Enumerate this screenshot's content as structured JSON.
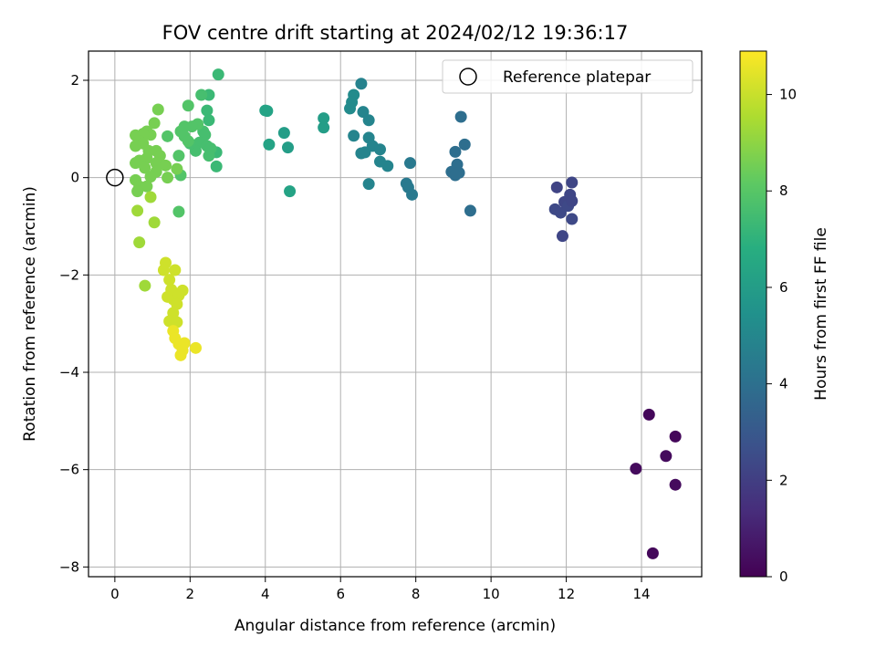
{
  "chart_data": {
    "type": "scatter",
    "title": "FOV centre drift starting at 2024/02/12 19:36:17",
    "xlabel": "Angular distance from reference (arcmin)",
    "ylabel": "Rotation from reference (arcmin)",
    "xlim": [
      -0.7,
      15.6
    ],
    "ylim": [
      -8.2,
      2.6
    ],
    "xticks": [
      0,
      2,
      4,
      6,
      8,
      10,
      12,
      14
    ],
    "yticks": [
      -8,
      -6,
      -4,
      -2,
      0,
      2
    ],
    "grid": true,
    "legend": {
      "placement": "top-right",
      "entries": [
        "Reference platepar"
      ]
    },
    "colorbar": {
      "label": "Hours from first FF file",
      "colormap": "viridis",
      "range": [
        0,
        10.9
      ],
      "ticks": [
        0,
        2,
        4,
        6,
        8,
        10
      ]
    },
    "reference_point": {
      "x": 0,
      "y": 0,
      "label": "Reference platepar"
    },
    "series": [
      {
        "points": [
          [
            14.2,
            -4.87,
            0.2
          ],
          [
            14.9,
            -5.32,
            0.2
          ],
          [
            14.65,
            -5.72,
            0.3
          ],
          [
            13.85,
            -5.98,
            0.3
          ],
          [
            14.9,
            -6.31,
            0.3
          ],
          [
            14.3,
            -7.72,
            0.2
          ],
          [
            11.75,
            -0.2,
            2.2
          ],
          [
            12.15,
            -0.1,
            2.3
          ],
          [
            12.1,
            -0.35,
            2.3
          ],
          [
            11.95,
            -0.5,
            2.3
          ],
          [
            11.7,
            -0.65,
            2.4
          ],
          [
            11.85,
            -0.72,
            2.4
          ],
          [
            12.05,
            -0.58,
            2.4
          ],
          [
            12.15,
            -0.48,
            2.3
          ],
          [
            12.15,
            -0.85,
            2.4
          ],
          [
            11.9,
            -1.2,
            2.3
          ],
          [
            9.2,
            1.25,
            3.9
          ],
          [
            9.3,
            0.68,
            3.9
          ],
          [
            9.05,
            0.53,
            3.9
          ],
          [
            9.1,
            0.27,
            3.9
          ],
          [
            8.95,
            0.12,
            3.9
          ],
          [
            9.15,
            0.1,
            3.9
          ],
          [
            9.05,
            0.05,
            3.9
          ],
          [
            9.45,
            -0.68,
            3.9
          ],
          [
            7.85,
            0.3,
            4.4
          ],
          [
            7.75,
            -0.12,
            4.4
          ],
          [
            7.8,
            -0.2,
            4.4
          ],
          [
            7.9,
            -0.35,
            4.4
          ],
          [
            6.55,
            1.93,
            4.8
          ],
          [
            6.6,
            1.35,
            4.9
          ],
          [
            6.75,
            1.18,
            4.9
          ],
          [
            6.35,
            0.86,
            4.9
          ],
          [
            6.75,
            0.82,
            4.9
          ],
          [
            6.85,
            0.65,
            4.9
          ],
          [
            7.05,
            0.58,
            4.9
          ],
          [
            6.65,
            0.52,
            4.9
          ],
          [
            6.55,
            0.5,
            4.9
          ],
          [
            7.05,
            0.33,
            4.9
          ],
          [
            7.25,
            0.24,
            4.9
          ],
          [
            6.75,
            -0.13,
            4.9
          ],
          [
            6.35,
            1.7,
            5.2
          ],
          [
            6.3,
            1.55,
            5.2
          ],
          [
            6.25,
            1.42,
            5.2
          ],
          [
            5.55,
            1.22,
            6.0
          ],
          [
            5.55,
            1.03,
            6.0
          ],
          [
            4.5,
            0.92,
            6.0
          ],
          [
            4.6,
            0.62,
            6.0
          ],
          [
            4.05,
            1.37,
            6.3
          ],
          [
            4.1,
            0.68,
            6.3
          ],
          [
            4.0,
            1.38,
            6.3
          ],
          [
            4.65,
            -0.28,
            6.3
          ],
          [
            2.75,
            2.12,
            7.3
          ],
          [
            2.5,
            1.7,
            7.3
          ],
          [
            2.45,
            1.38,
            7.3
          ],
          [
            2.5,
            1.18,
            7.3
          ],
          [
            2.7,
            0.52,
            7.3
          ],
          [
            2.7,
            0.23,
            7.3
          ],
          [
            2.3,
            1.7,
            7.6
          ],
          [
            2.35,
            0.95,
            7.6
          ],
          [
            2.4,
            0.88,
            7.6
          ],
          [
            2.25,
            0.72,
            7.6
          ],
          [
            2.45,
            0.65,
            7.6
          ],
          [
            2.55,
            0.6,
            7.6
          ],
          [
            2.5,
            0.45,
            7.6
          ],
          [
            2.15,
            0.55,
            7.6
          ],
          [
            2.0,
            0.7,
            7.6
          ],
          [
            1.95,
            1.48,
            7.9
          ],
          [
            2.2,
            1.1,
            7.9
          ],
          [
            2.05,
            1.05,
            7.9
          ],
          [
            1.85,
            1.05,
            7.9
          ],
          [
            1.75,
            0.95,
            7.9
          ],
          [
            1.85,
            0.85,
            7.9
          ],
          [
            1.95,
            0.75,
            7.9
          ],
          [
            1.7,
            0.45,
            7.9
          ],
          [
            1.75,
            0.05,
            7.9
          ],
          [
            1.7,
            -0.7,
            7.9
          ],
          [
            1.4,
            0.85,
            7.9
          ],
          [
            1.15,
            1.4,
            8.6
          ],
          [
            1.05,
            1.12,
            8.6
          ],
          [
            0.85,
            0.95,
            8.6
          ],
          [
            0.95,
            0.88,
            8.6
          ],
          [
            0.75,
            0.9,
            8.6
          ],
          [
            0.55,
            0.87,
            8.6
          ],
          [
            0.65,
            0.75,
            8.6
          ],
          [
            0.75,
            0.7,
            8.6
          ],
          [
            0.55,
            0.65,
            8.6
          ],
          [
            0.9,
            0.55,
            8.6
          ],
          [
            1.1,
            0.55,
            8.6
          ],
          [
            1.2,
            0.45,
            8.6
          ],
          [
            0.85,
            0.4,
            8.6
          ],
          [
            0.65,
            0.35,
            8.6
          ],
          [
            0.55,
            0.3,
            8.6
          ],
          [
            0.8,
            0.2,
            8.6
          ],
          [
            1.1,
            0.3,
            8.6
          ],
          [
            1.35,
            0.25,
            8.6
          ],
          [
            1.4,
            0.0,
            8.6
          ],
          [
            1.65,
            0.18,
            8.6
          ],
          [
            1.1,
            0.12,
            8.6
          ],
          [
            0.95,
            0.02,
            8.6
          ],
          [
            0.55,
            -0.05,
            8.6
          ],
          [
            0.65,
            -0.18,
            8.6
          ],
          [
            0.85,
            -0.18,
            8.6
          ],
          [
            0.6,
            -0.28,
            8.6
          ],
          [
            0.95,
            -0.4,
            9.3
          ],
          [
            1.05,
            -0.92,
            9.3
          ],
          [
            0.6,
            -0.68,
            9.3
          ],
          [
            0.65,
            -1.33,
            9.3
          ],
          [
            0.8,
            -2.22,
            9.3
          ],
          [
            1.35,
            -1.75,
            10.1
          ],
          [
            1.3,
            -1.9,
            10.1
          ],
          [
            1.6,
            -1.9,
            10.1
          ],
          [
            1.45,
            -2.1,
            10.1
          ],
          [
            1.5,
            -2.3,
            10.1
          ],
          [
            1.4,
            -2.45,
            10.1
          ],
          [
            1.55,
            -2.5,
            10.1
          ],
          [
            1.8,
            -2.32,
            10.1
          ],
          [
            1.7,
            -2.42,
            10.1
          ],
          [
            1.65,
            -2.6,
            10.1
          ],
          [
            1.55,
            -2.78,
            10.1
          ],
          [
            1.45,
            -2.95,
            10.1
          ],
          [
            1.6,
            -2.95,
            10.1
          ],
          [
            1.65,
            -2.97,
            10.1
          ],
          [
            1.55,
            -3.15,
            10.6
          ],
          [
            1.6,
            -3.3,
            10.6
          ],
          [
            1.7,
            -3.42,
            10.6
          ],
          [
            1.85,
            -3.4,
            10.6
          ],
          [
            1.8,
            -3.55,
            10.6
          ],
          [
            2.15,
            -3.5,
            10.6
          ],
          [
            1.75,
            -3.65,
            10.6
          ]
        ]
      }
    ]
  }
}
